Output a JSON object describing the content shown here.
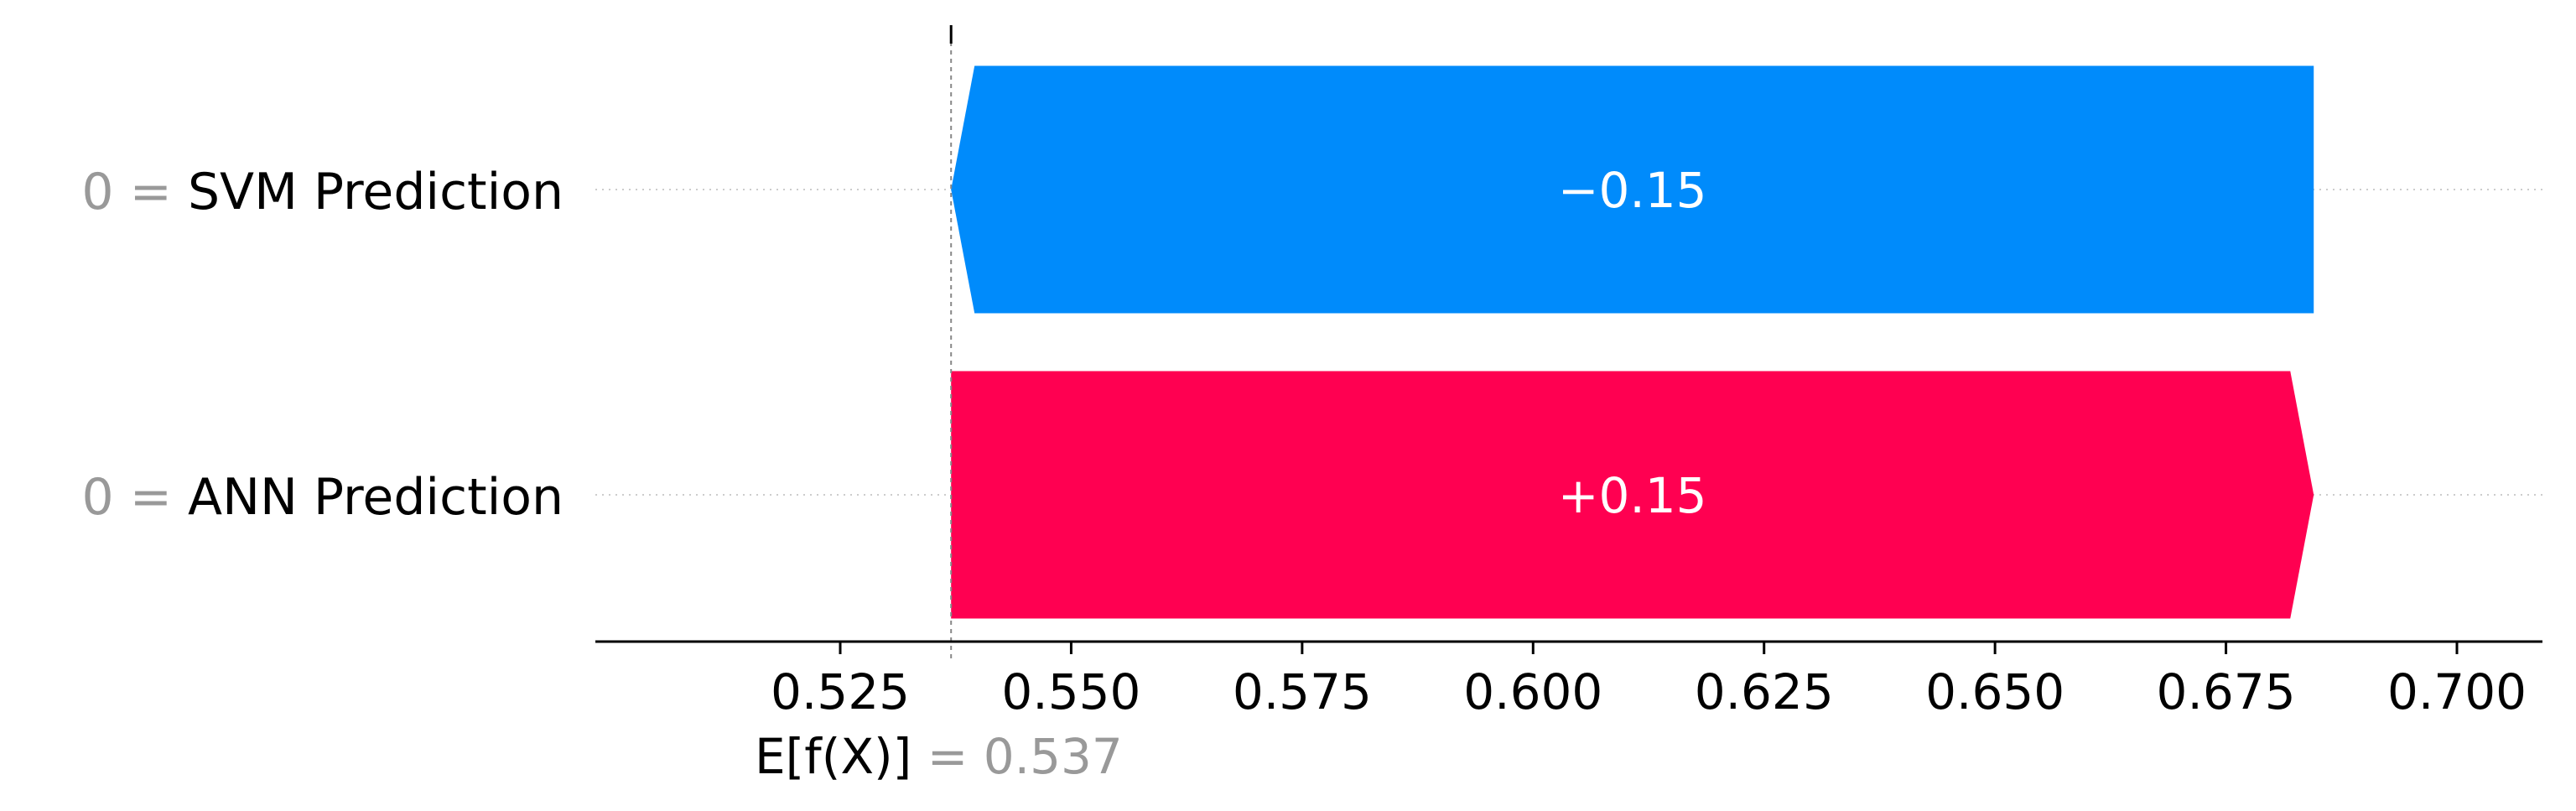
{
  "chart_data": {
    "type": "bar",
    "subtype": "shap-waterfall",
    "features": [
      {
        "value": "0",
        "name": "SVM Prediction",
        "contribution": -0.15,
        "label": "−0.15",
        "start": 0.6845,
        "end": 0.537
      },
      {
        "value": "0",
        "name": "ANN Prediction",
        "contribution": 0.15,
        "label": "+0.15",
        "start": 0.537,
        "end": 0.6845
      }
    ],
    "base_value": {
      "label": "E[f(X)]",
      "value_text": "= 0.537",
      "value": 0.537
    },
    "xlim": [
      0.512,
      0.707
    ],
    "xticks": [
      0.525,
      0.55,
      0.575,
      0.6,
      0.625,
      0.65,
      0.675,
      0.7
    ],
    "xtick_labels": [
      "0.525",
      "0.550",
      "0.575",
      "0.600",
      "0.625",
      "0.650",
      "0.675",
      "0.700"
    ],
    "colors": {
      "negative": "#008bfb",
      "positive": "#ff0051",
      "feature_value": "#999999",
      "gridline": "#cccccc"
    },
    "grid": "horizontal dotted per feature row"
  }
}
